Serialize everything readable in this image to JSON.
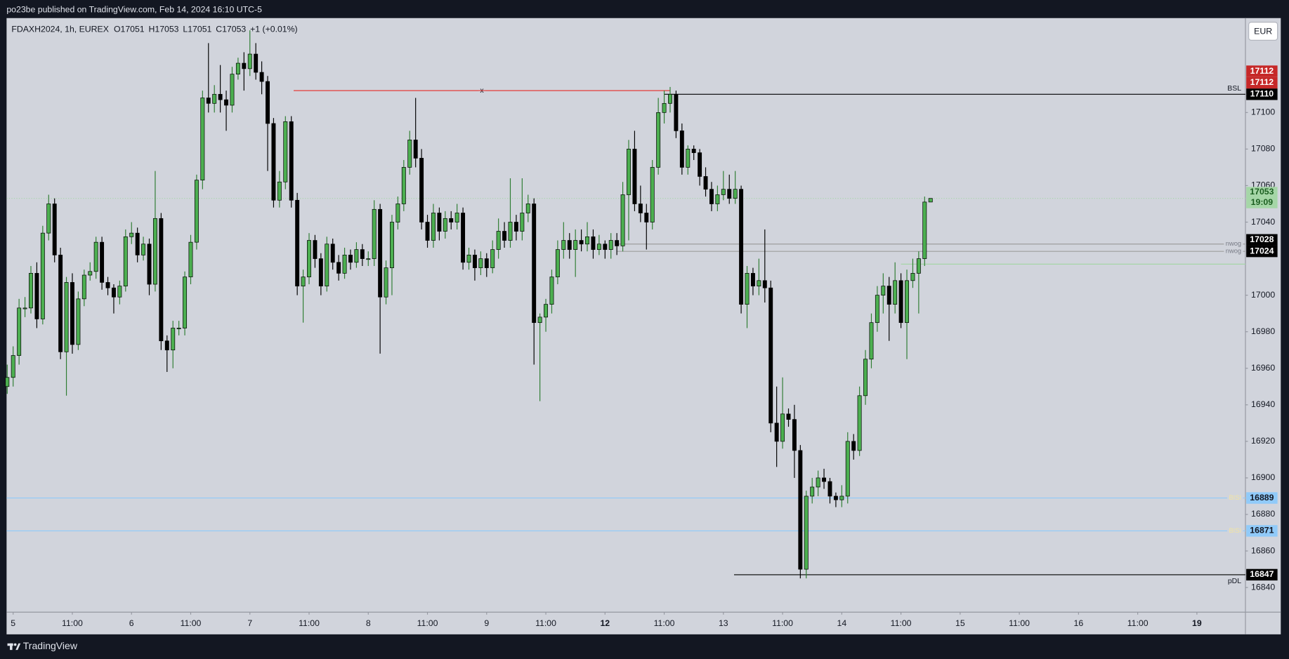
{
  "header": {
    "attribution": "po23be published on TradingView.com, Feb 14, 2024 16:10 UTC-5"
  },
  "footer": {
    "brand": "TradingView"
  },
  "currency": "EUR",
  "chart_data": {
    "type": "candlestick",
    "symbol": "FDAXH2024, 1h, EUREX",
    "ohlc_legend": [
      "O17051",
      "H17053",
      "L17051",
      "C17053",
      "+1 (+0.01%)"
    ],
    "up_color": "#4caf50",
    "down_color": "#000000",
    "xlim": [
      -1.11,
      208.2
    ],
    "ylim": [
      16826.5,
      17151.7
    ],
    "grid": false,
    "yticks": [
      16840,
      16860,
      16880,
      16900,
      16920,
      16940,
      16960,
      16980,
      17000,
      17040,
      17060,
      17080,
      17100
    ],
    "xticks": [
      {
        "value": 0,
        "label": "5"
      },
      {
        "value": 10,
        "label": "11:00"
      },
      {
        "value": 20,
        "label": "6"
      },
      {
        "value": 30,
        "label": "11:00"
      },
      {
        "value": 40,
        "label": "7"
      },
      {
        "value": 50,
        "label": "11:00"
      },
      {
        "value": 60,
        "label": "8"
      },
      {
        "value": 70,
        "label": "11:00"
      },
      {
        "value": 80,
        "label": "9"
      },
      {
        "value": 90,
        "label": "11:00"
      },
      {
        "value": 100,
        "label": "12",
        "bold": true
      },
      {
        "value": 110,
        "label": "11:00"
      },
      {
        "value": 120,
        "label": "13"
      },
      {
        "value": 130,
        "label": "11:00"
      },
      {
        "value": 140,
        "label": "14"
      },
      {
        "value": 150,
        "label": "11:00"
      },
      {
        "value": 160,
        "label": "15"
      },
      {
        "value": 170,
        "label": "11:00"
      },
      {
        "value": 180,
        "label": "16"
      },
      {
        "value": 190,
        "label": "11:00"
      },
      {
        "value": 200,
        "label": "19",
        "bold": true
      }
    ],
    "x": [
      -1,
      0,
      1,
      2,
      3,
      4,
      5,
      6,
      7,
      8,
      9,
      10,
      11,
      12,
      13,
      14,
      15,
      16,
      17,
      18,
      19,
      20,
      21,
      22,
      23,
      24,
      25,
      26,
      27,
      28,
      29,
      30,
      31,
      32,
      33,
      34,
      35,
      36,
      37,
      38,
      39,
      40,
      41,
      42,
      43,
      44,
      45,
      46,
      47,
      48,
      49,
      50,
      51,
      52,
      53,
      54,
      55,
      56,
      57,
      58,
      59,
      60,
      61,
      62,
      63,
      64,
      65,
      66,
      67,
      68,
      69,
      70,
      71,
      72,
      73,
      74,
      75,
      76,
      77,
      78,
      79,
      80,
      81,
      82,
      83,
      84,
      85,
      86,
      87,
      88,
      89,
      90,
      91,
      92,
      93,
      94,
      95,
      96,
      97,
      98,
      99,
      100,
      101,
      102,
      103,
      104,
      105,
      106,
      107,
      108,
      109,
      110,
      111,
      112,
      113,
      114,
      115,
      116,
      117,
      118,
      119,
      120,
      121,
      122,
      123,
      124,
      125,
      126,
      127,
      128,
      129,
      130,
      131,
      132,
      133,
      134,
      135,
      136,
      137,
      138,
      139,
      140,
      141,
      142,
      143,
      144,
      145,
      146,
      147,
      148,
      149,
      150,
      151,
      152,
      153,
      154,
      155
    ],
    "ohlc": [
      [
        16950,
        16962,
        16946,
        16955
      ],
      [
        16955,
        16972,
        16950,
        16967
      ],
      [
        16967,
        16998,
        16962,
        16993
      ],
      [
        16993,
        16999,
        16988,
        16993
      ],
      [
        16993,
        17016,
        16990,
        17012
      ],
      [
        17012,
        17018,
        16982,
        16987
      ],
      [
        16987,
        17038,
        16984,
        17034
      ],
      [
        17034,
        17055,
        17030,
        17050
      ],
      [
        17050,
        17053,
        17018,
        17022
      ],
      [
        17022,
        17026,
        16965,
        16969
      ],
      [
        16969,
        17010,
        16945,
        17007
      ],
      [
        17007,
        17012,
        16968,
        16973
      ],
      [
        16973,
        17002,
        16970,
        16998
      ],
      [
        16998,
        17014,
        16994,
        17011
      ],
      [
        17011,
        17018,
        17008,
        17013
      ],
      [
        17013,
        17032,
        17009,
        17029
      ],
      [
        17029,
        17032,
        17003,
        17007
      ],
      [
        17007,
        17010,
        17000,
        17004
      ],
      [
        17004,
        17006,
        16990,
        16999
      ],
      [
        16999,
        17008,
        16995,
        17005
      ],
      [
        17005,
        17036,
        17002,
        17032
      ],
      [
        17032,
        17040,
        17028,
        17034
      ],
      [
        17034,
        17037,
        17018,
        17022
      ],
      [
        17022,
        17032,
        17019,
        17028
      ],
      [
        17028,
        17031,
        17000,
        17006
      ],
      [
        17006,
        17068,
        17002,
        17042
      ],
      [
        17042,
        17045,
        16970,
        16975
      ],
      [
        16975,
        16978,
        16958,
        16970
      ],
      [
        16970,
        16986,
        16960,
        16982
      ],
      [
        16982,
        16986,
        16978,
        16982
      ],
      [
        16982,
        17013,
        16978,
        17010
      ],
      [
        17010,
        17033,
        17006,
        17029
      ],
      [
        17029,
        17066,
        17025,
        17063
      ],
      [
        17063,
        17112,
        17058,
        17108
      ],
      [
        17108,
        17138,
        17100,
        17105
      ],
      [
        17105,
        17115,
        17100,
        17110
      ],
      [
        17110,
        17126,
        17100,
        17107
      ],
      [
        17107,
        17112,
        17090,
        17104
      ],
      [
        17104,
        17125,
        17100,
        17121
      ],
      [
        17121,
        17130,
        17118,
        17127
      ],
      [
        17127,
        17133,
        17112,
        17124
      ],
      [
        17124,
        17145,
        17120,
        17132
      ],
      [
        17132,
        17138,
        17118,
        17122
      ],
      [
        17122,
        17128,
        17110,
        17117
      ],
      [
        17117,
        17120,
        17068,
        17094
      ],
      [
        17094,
        17097,
        17048,
        17052
      ],
      [
        17052,
        17068,
        17048,
        17062
      ],
      [
        17062,
        17098,
        17058,
        17095
      ],
      [
        17095,
        17098,
        17048,
        17052
      ],
      [
        17052,
        17056,
        17000,
        17005
      ],
      [
        17005,
        17014,
        16985,
        17010
      ],
      [
        17010,
        17034,
        17006,
        17030
      ],
      [
        17030,
        17033,
        17015,
        17020
      ],
      [
        17020,
        17023,
        17000,
        17005
      ],
      [
        17005,
        17032,
        17002,
        17028
      ],
      [
        17028,
        17031,
        17014,
        17018
      ],
      [
        17018,
        17022,
        17008,
        17012
      ],
      [
        17012,
        17026,
        17009,
        17022
      ],
      [
        17022,
        17025,
        17014,
        17018
      ],
      [
        17018,
        17029,
        17015,
        17025
      ],
      [
        17025,
        17028,
        17016,
        17020
      ],
      [
        17020,
        17024,
        17016,
        17020
      ],
      [
        17020,
        17052,
        17016,
        17047
      ],
      [
        17047,
        17050,
        16968,
        16999
      ],
      [
        16999,
        17019,
        16995,
        17015
      ],
      [
        17015,
        17044,
        17000,
        17040
      ],
      [
        17040,
        17054,
        17036,
        17050
      ],
      [
        17050,
        17074,
        17046,
        17070
      ],
      [
        17070,
        17090,
        17066,
        17085
      ],
      [
        17085,
        17108,
        17070,
        17075
      ],
      [
        17075,
        17080,
        17036,
        17040
      ],
      [
        17040,
        17044,
        17026,
        17030
      ],
      [
        17030,
        17050,
        17026,
        17045
      ],
      [
        17045,
        17048,
        17030,
        17035
      ],
      [
        17035,
        17046,
        17031,
        17042
      ],
      [
        17042,
        17046,
        17036,
        17040
      ],
      [
        17040,
        17050,
        17036,
        17045
      ],
      [
        17045,
        17048,
        17014,
        17018
      ],
      [
        17018,
        17026,
        17014,
        17022
      ],
      [
        17022,
        17025,
        17008,
        17015
      ],
      [
        17015,
        17024,
        17011,
        17020
      ],
      [
        17020,
        17023,
        17010,
        17015
      ],
      [
        17015,
        17030,
        17012,
        17025
      ],
      [
        17025,
        17042,
        17020,
        17035
      ],
      [
        17035,
        17040,
        17026,
        17030
      ],
      [
        17030,
        17064,
        17026,
        17040
      ],
      [
        17040,
        17044,
        17030,
        17035
      ],
      [
        17035,
        17064,
        17030,
        17045
      ],
      [
        17045,
        17055,
        17040,
        17050
      ],
      [
        17050,
        17053,
        16962,
        16985
      ],
      [
        16985,
        16990,
        16942,
        16988
      ],
      [
        16988,
        16998,
        16980,
        16995
      ],
      [
        16995,
        17014,
        16990,
        17010
      ],
      [
        17010,
        17030,
        17006,
        17025
      ],
      [
        17025,
        17040,
        17020,
        17030
      ],
      [
        17030,
        17034,
        17020,
        17025
      ],
      [
        17025,
        17036,
        17010,
        17030
      ],
      [
        17030,
        17036,
        17024,
        17028
      ],
      [
        17028,
        17040,
        17024,
        17032
      ],
      [
        17032,
        17036,
        17020,
        17025
      ],
      [
        17025,
        17033,
        17022,
        17028
      ],
      [
        17028,
        17030,
        17020,
        17025
      ],
      [
        17025,
        17034,
        17020,
        17030
      ],
      [
        17030,
        17034,
        17022,
        17027
      ],
      [
        17027,
        17062,
        17024,
        17055
      ],
      [
        17055,
        17085,
        17030,
        17080
      ],
      [
        17080,
        17090,
        17046,
        17050
      ],
      [
        17050,
        17060,
        17040,
        17045
      ],
      [
        17045,
        17050,
        17025,
        17040
      ],
      [
        17040,
        17074,
        17036,
        17070
      ],
      [
        17070,
        17108,
        17066,
        17100
      ],
      [
        17100,
        17112,
        17094,
        17105
      ],
      [
        17105,
        17114,
        17100,
        17110
      ],
      [
        17110,
        17112,
        17086,
        17090
      ],
      [
        17090,
        17094,
        17066,
        17070
      ],
      [
        17070,
        17082,
        17066,
        17080
      ],
      [
        17080,
        17082,
        17074,
        17078
      ],
      [
        17078,
        17080,
        17060,
        17065
      ],
      [
        17065,
        17070,
        17054,
        17058
      ],
      [
        17058,
        17062,
        17046,
        17050
      ],
      [
        17050,
        17060,
        17046,
        17055
      ],
      [
        17055,
        17068,
        17052,
        17058
      ],
      [
        17058,
        17066,
        17050,
        17053
      ],
      [
        17053,
        17068,
        17050,
        17058
      ],
      [
        17058,
        17060,
        16990,
        16995
      ],
      [
        16995,
        17016,
        16982,
        17012
      ],
      [
        17012,
        17015,
        17000,
        17005
      ],
      [
        17005,
        17020,
        17000,
        17008
      ],
      [
        17008,
        17036,
        16996,
        17004
      ],
      [
        17004,
        17008,
        16925,
        16930
      ],
      [
        16930,
        16950,
        16906,
        16920
      ],
      [
        16920,
        16955,
        16916,
        16935
      ],
      [
        16935,
        16938,
        16928,
        16932
      ],
      [
        16932,
        16940,
        16900,
        16915
      ],
      [
        16915,
        16918,
        16845,
        16850
      ],
      [
        16850,
        16893,
        16845,
        16890
      ],
      [
        16890,
        16900,
        16886,
        16895
      ],
      [
        16895,
        16904,
        16890,
        16900
      ],
      [
        16900,
        16905,
        16894,
        16898
      ],
      [
        16898,
        16900,
        16886,
        16890
      ],
      [
        16890,
        16892,
        16884,
        16888
      ],
      [
        16888,
        16896,
        16884,
        16890
      ],
      [
        16890,
        16925,
        16886,
        16920
      ],
      [
        16920,
        16924,
        16910,
        16915
      ],
      [
        16915,
        16950,
        16912,
        16945
      ],
      [
        16945,
        16970,
        16940,
        16965
      ],
      [
        16965,
        16990,
        16960,
        16985
      ],
      [
        16985,
        17005,
        16980,
        17000
      ],
      [
        17000,
        17012,
        16990,
        17005
      ],
      [
        17005,
        17010,
        16975,
        16995
      ],
      [
        16995,
        17018,
        16990,
        17008
      ],
      [
        17008,
        17012,
        16982,
        16985
      ],
      [
        16985,
        17014,
        16965,
        17008
      ],
      [
        17008,
        17020,
        17004,
        17012
      ],
      [
        17012,
        17024,
        16990,
        17020
      ],
      [
        17020,
        17054,
        17016,
        17051
      ],
      [
        17051,
        17053,
        17051,
        17053
      ]
    ],
    "levels": [
      {
        "value": 17112,
        "color": "#e53935",
        "tag_color": "#c62828",
        "start": 47.4,
        "end": 111,
        "label": "x",
        "label_position": "middle"
      },
      {
        "value": 17112,
        "color": "#e53935",
        "tag_color": "#c62828",
        "start": 47.4,
        "end": 111
      },
      {
        "value": 17110,
        "color": "#000000",
        "tag_color": "#000000",
        "start": 110,
        "label": "BSL",
        "label_position": "above"
      },
      {
        "value": 17028,
        "color": "#9e9e9e",
        "tag_color": "#000000",
        "start": 102,
        "label": "nwog",
        "label_position": "on"
      },
      {
        "value": 17024,
        "color": "#9e9e9e",
        "tag_color": "#000000",
        "start": 102,
        "label": "nwog",
        "label_position": "on"
      },
      {
        "value": 17017,
        "color": "#a5d6a7",
        "start": 150,
        "tag": false
      },
      {
        "value": 16889,
        "color": "#90caf9",
        "tag_color": "#90caf9",
        "label": "BISI",
        "label_color": "#f3e5a0",
        "label_position": "on"
      },
      {
        "value": 16871,
        "color": "#90caf9",
        "tag_color": "#90caf9",
        "label": "BISI",
        "label_color": "#f3e5a0",
        "label_position": "on"
      },
      {
        "value": 16847,
        "color": "#000000",
        "tag_color": "#000000",
        "start": 121.8,
        "label": "pDL",
        "label_position": "below"
      }
    ],
    "last_price": {
      "value": 17053,
      "countdown": "19:09",
      "color": "#a5d6a7"
    }
  }
}
